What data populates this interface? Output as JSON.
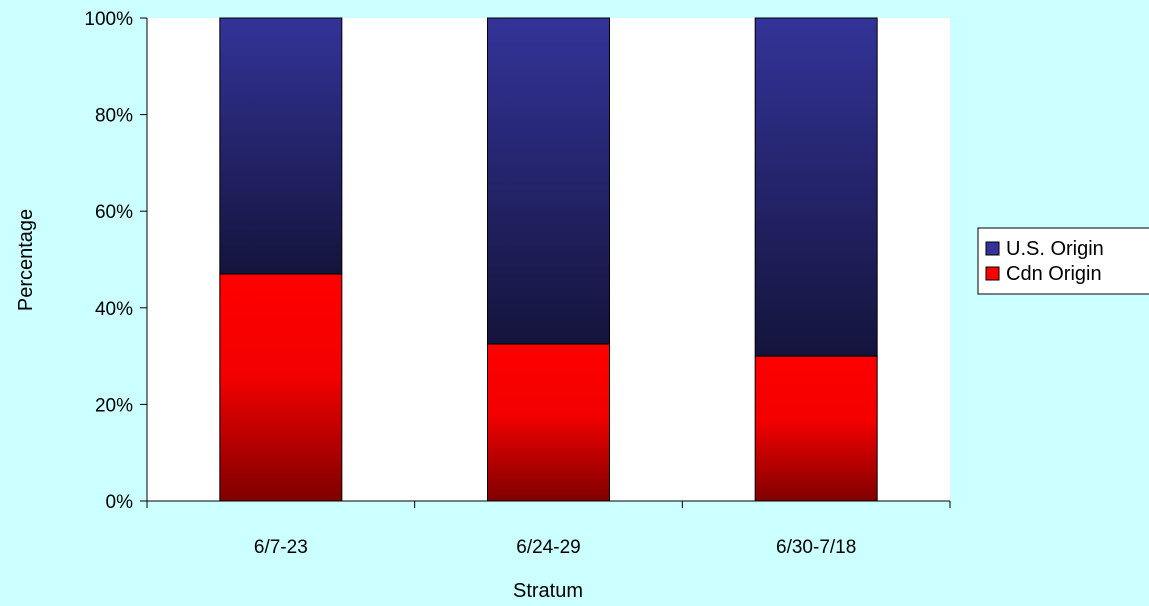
{
  "chart_data": {
    "type": "bar",
    "stacked": true,
    "percent": true,
    "title": "",
    "xlabel": "Stratum",
    "ylabel": "Percentage",
    "ylim": [
      0,
      100
    ],
    "yticks": [
      "0%",
      "20%",
      "40%",
      "60%",
      "80%",
      "100%"
    ],
    "grid": false,
    "legend_position": "right",
    "categories": [
      "6/7-23",
      "6/24-29",
      "6/30-7/18"
    ],
    "series": [
      {
        "name": "Cdn Origin",
        "values": [
          47,
          32.5,
          30
        ],
        "color": "#ff0000",
        "color_dark": "#800000"
      },
      {
        "name": "U.S. Origin",
        "values": [
          53,
          67.5,
          70
        ],
        "color": "#333399",
        "color_dark": "#14143c"
      }
    ]
  }
}
